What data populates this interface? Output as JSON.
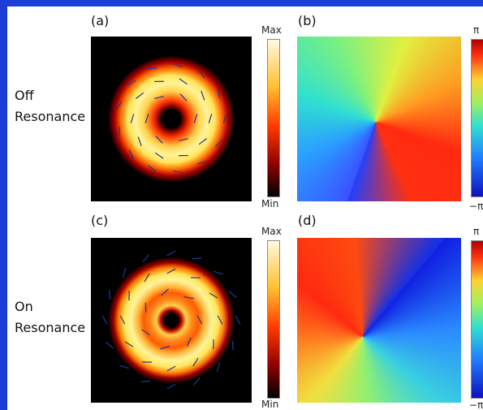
{
  "panels": [
    {
      "label": "(a)"
    },
    {
      "label": "(b)"
    },
    {
      "label": "(c)"
    },
    {
      "label": "(d)"
    }
  ],
  "rows": [
    {
      "label": [
        "Off",
        "Resonance"
      ]
    },
    {
      "label": [
        "On",
        "Resonance"
      ]
    }
  ],
  "colorbars": {
    "intensity": {
      "max": "Max",
      "min": "Min"
    },
    "phase": {
      "max": "π",
      "min": "−π"
    }
  }
}
